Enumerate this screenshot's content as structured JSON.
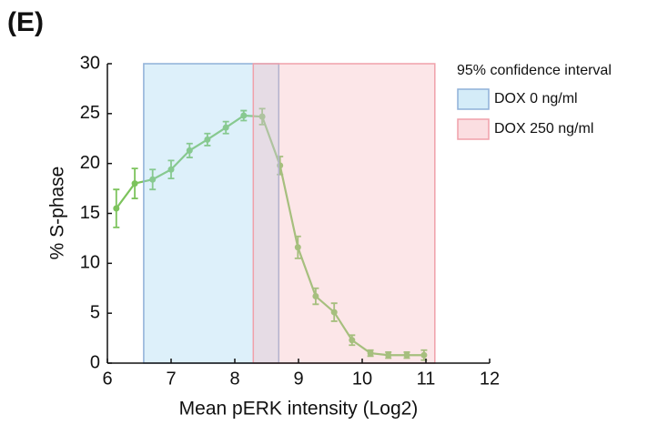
{
  "chart_data": {
    "type": "line",
    "panel_label": "(E)",
    "x_label": "Mean pERK intensity (Log2)",
    "y_label": "% S-phase",
    "x": [
      6.14,
      6.43,
      6.71,
      7.0,
      7.29,
      7.57,
      7.86,
      8.14,
      8.43,
      8.71,
      8.99,
      9.27,
      9.56,
      9.84,
      10.13,
      10.41,
      10.7,
      10.97
    ],
    "series": [
      {
        "name": "% S-phase",
        "color": "#7cc35c",
        "values": [
          15.5,
          18.0,
          18.4,
          19.4,
          21.3,
          22.4,
          23.6,
          24.8,
          24.7,
          19.8,
          11.6,
          6.7,
          5.1,
          2.3,
          1.0,
          0.8,
          0.8,
          0.8
        ],
        "errors": [
          1.9,
          1.5,
          1.0,
          0.9,
          0.7,
          0.6,
          0.6,
          0.5,
          0.8,
          0.9,
          1.1,
          0.8,
          0.9,
          0.5,
          0.3,
          0.3,
          0.3,
          0.5
        ]
      }
    ],
    "legend_title": "95% confidence interval",
    "intervals": [
      {
        "name": "DOX 0 ng/ml",
        "color": "#9fd4f0",
        "edge": "#8fb0d8",
        "range": [
          6.57,
          8.69
        ]
      },
      {
        "name": "DOX 250 ng/ml",
        "color": "#f6b6bc",
        "edge": "#f0a0aa",
        "range": [
          8.29,
          11.14
        ]
      }
    ],
    "xlim": [
      6,
      12
    ],
    "xticks": [
      6,
      7,
      8,
      9,
      10,
      11,
      12
    ],
    "ylim": [
      0,
      30
    ],
    "yticks": [
      0,
      5,
      10,
      15,
      20,
      25,
      30
    ]
  }
}
